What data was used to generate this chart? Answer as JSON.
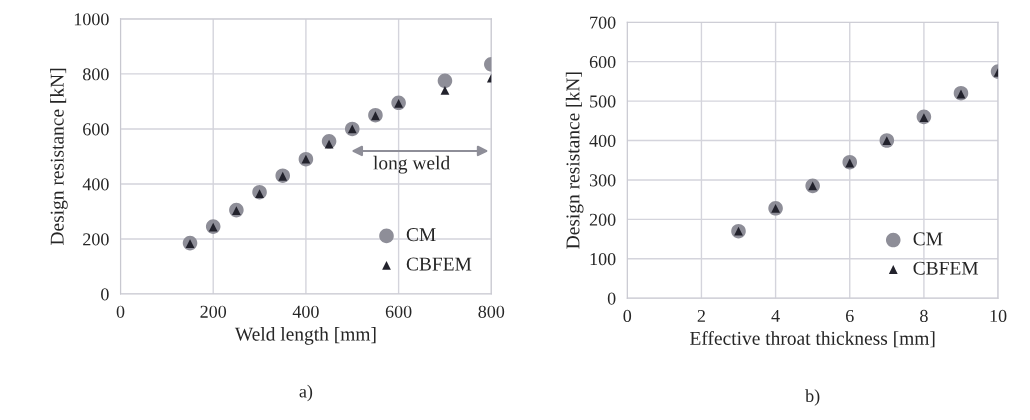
{
  "chart_data": [
    {
      "type": "scatter",
      "xlabel": "Weld length [mm]",
      "ylabel": "Design resistance [kN]",
      "x": [
        150,
        200,
        250,
        300,
        350,
        400,
        450,
        500,
        550,
        600,
        700,
        800
      ],
      "series": [
        {
          "name": "CM",
          "color": "#8e8e98",
          "marker": "circle",
          "values": [
            185,
            245,
            305,
            370,
            430,
            490,
            555,
            600,
            650,
            695,
            775,
            835
          ]
        },
        {
          "name": "CBFEM",
          "color": "#22222c",
          "marker": "triangle",
          "values": [
            183,
            243,
            303,
            365,
            428,
            490,
            545,
            600,
            648,
            693,
            740,
            785
          ]
        }
      ],
      "xlim": [
        0,
        800
      ],
      "xticks": [
        0,
        200,
        400,
        600,
        800
      ],
      "ylim": [
        0,
        1000
      ],
      "yticks": [
        0,
        200,
        400,
        600,
        800,
        1000
      ],
      "grid": true,
      "legend": "bottom right",
      "annotations": [
        "long weld",
        "a)"
      ]
    },
    {
      "type": "scatter",
      "xlabel": "Effective throat thickness [mm]",
      "ylabel": "Design resistance [kN]",
      "x": [
        3,
        4,
        5,
        6,
        7,
        8,
        9,
        10
      ],
      "series": [
        {
          "name": "CM",
          "color": "#8e8e98",
          "marker": "circle",
          "values": [
            170,
            228,
            285,
            345,
            400,
            460,
            520,
            575
          ]
        },
        {
          "name": "CBFEM",
          "color": "#22222c",
          "marker": "triangle",
          "values": [
            170,
            228,
            285,
            343,
            400,
            458,
            518,
            573
          ]
        }
      ],
      "xlim": [
        0,
        10
      ],
      "xticks": [
        0,
        2,
        4,
        6,
        8,
        10
      ],
      "ylim": [
        0,
        700
      ],
      "yticks": [
        0,
        100,
        200,
        300,
        400,
        500,
        600,
        700
      ],
      "grid": true,
      "legend": "bottom right",
      "annotations": [
        "b)"
      ]
    }
  ]
}
